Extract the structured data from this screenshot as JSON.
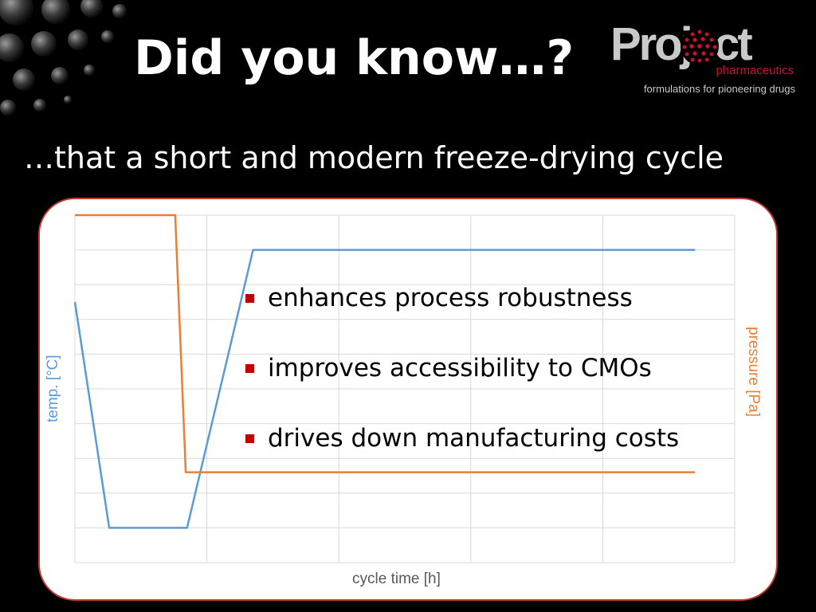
{
  "slide": {
    "title": "Did you know…?",
    "subtitle": "…that a short and modern freeze-drying cycle",
    "bullets": [
      "enhances process robustness",
      "improves accessibility to CMOs",
      "drives down manufacturing costs"
    ],
    "bullet_color": "#c00000",
    "card_border_color": "#c0392b"
  },
  "logo": {
    "word": "Project",
    "sub": "pharmaceutics",
    "tagline": "formulations for pioneering drugs",
    "accent_color": "#c8102e"
  },
  "chart_data": {
    "type": "line",
    "xlabel": "cycle time [h]",
    "ylabel": "temp. [°C]",
    "y2label": "pressure [Pa]",
    "grid": true,
    "series": [
      {
        "color": "#5b9bd5",
        "x": [
          0,
          0.26,
          0.85,
          1.35,
          4.7
        ],
        "y": [
          7.5,
          1.0,
          1.0,
          9.0,
          9.0
        ]
      },
      {
        "color": "#ed7d31",
        "x": [
          0,
          0.76,
          0.84,
          4.7
        ],
        "y": [
          10.0,
          10.0,
          2.6,
          2.6
        ]
      }
    ]
  }
}
